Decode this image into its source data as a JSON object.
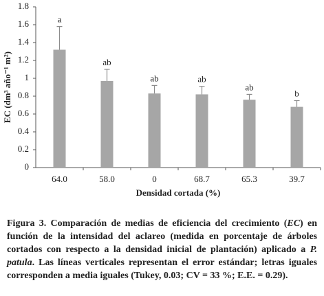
{
  "chart_data": {
    "type": "bar",
    "categories": [
      "64.0",
      "58.0",
      "0",
      "68.7",
      "65.3",
      "39.7"
    ],
    "values": [
      1.32,
      0.97,
      0.83,
      0.82,
      0.76,
      0.68
    ],
    "errors": [
      0.26,
      0.13,
      0.09,
      0.09,
      0.06,
      0.07
    ],
    "letters": [
      "a",
      "ab",
      "ab",
      "ab",
      "ab",
      "b"
    ],
    "color": "#a6a6a6",
    "error_color": "#8c8c8c",
    "ylim": [
      0,
      1.8
    ],
    "yticks": [
      0,
      0.2,
      0.4,
      0.6,
      0.8,
      1,
      1.2,
      1.4,
      1.6,
      1.8
    ],
    "ylabel": "EC (dm³ año⁻¹ m²)",
    "xlabel": "Densidad cortada (%)",
    "caption": [
      "Figura 3. Comparación de medias de eficiencia del crecimiento (",
      "EC",
      ") en función de la intensidad del aclareo (medida en porcentaje de árboles cortados con respecto a la densidad inicial de plantación) aplicado a ",
      "P. patula",
      ". Las líneas verticales representan el error estándar; letras iguales corresponden a media iguales (Tukey, 0.03; CV = 33 %; E.E. = 0.29)."
    ]
  }
}
